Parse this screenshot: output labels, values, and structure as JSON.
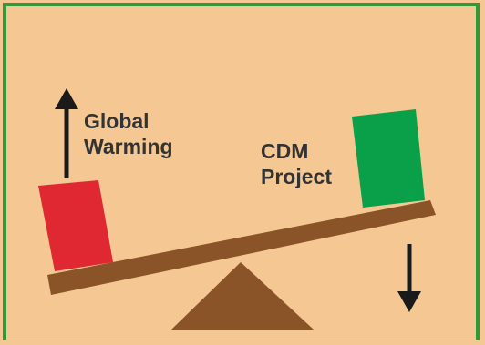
{
  "labels": {
    "left_line1": "Global",
    "left_line2": "Warming",
    "right_line1": "CDM",
    "right_line2": "Project"
  },
  "colors": {
    "background": "#f4c793",
    "frame": "#2e9a3a",
    "plank": "#8a5328",
    "fulcrum": "#8a5328",
    "left_block": "#e02832",
    "right_block": "#0aa04a",
    "arrow": "#1a1a1a"
  },
  "icons": {
    "left_arrow": "arrow-up-icon",
    "right_arrow": "arrow-down-icon"
  }
}
